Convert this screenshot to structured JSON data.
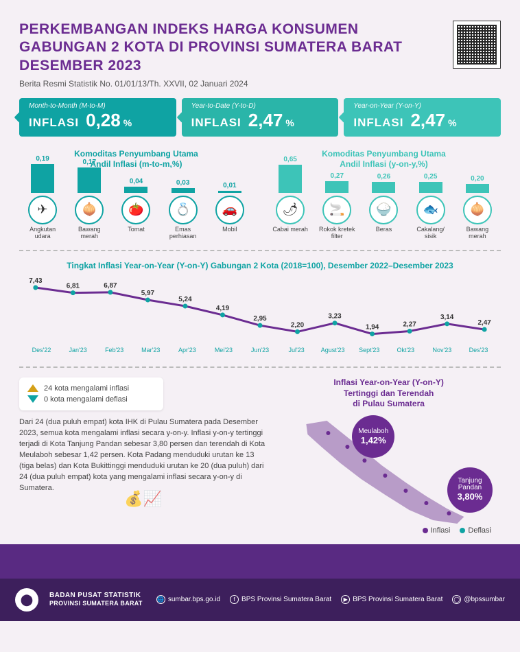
{
  "header": {
    "title_l1": "PERKEMBANGAN INDEKS HARGA KONSUMEN",
    "title_l2": "GABUNGAN 2 KOTA DI PROVINSI SUMATERA BARAT",
    "title_l3": "DESEMBER 2023",
    "subtitle": "Berita Resmi Statistik No. 01/01/13/Th. XXVII, 02 Januari 2024"
  },
  "stats": [
    {
      "eyebrow": "Month-to-Month (M-to-M)",
      "label": "INFLASI",
      "value": "0,28",
      "unit": "%",
      "bg": "#0fa3a3"
    },
    {
      "eyebrow": "Year-to-Date (Y-to-D)",
      "label": "INFLASI",
      "value": "2,47",
      "unit": "%",
      "bg": "#2ab5a9"
    },
    {
      "eyebrow": "Year-on-Year (Y-on-Y)",
      "label": "INFLASI",
      "value": "2,47",
      "unit": "%",
      "bg": "#3dc4b8"
    }
  ],
  "commodity": {
    "left_title_l1": "Komoditas Penyumbang Utama",
    "left_title_l2": "Andil Inflasi (m-to-m,%)",
    "right_title_l1": "Komoditas Penyumbang Utama",
    "right_title_l2": "Andil Inflasi (y-on-y,%)",
    "left_max": 0.2,
    "right_max": 0.7,
    "left_color": "#0fa3a3",
    "right_color": "#3dc4b8",
    "left": [
      {
        "value": "0,19",
        "num": 0.19,
        "label": "Angkutan udara",
        "icon": "✈"
      },
      {
        "value": "0,17",
        "num": 0.17,
        "label": "Bawang merah",
        "icon": "🧅"
      },
      {
        "value": "0,04",
        "num": 0.04,
        "label": "Tomat",
        "icon": "🍅"
      },
      {
        "value": "0,03",
        "num": 0.03,
        "label": "Emas perhiasan",
        "icon": "💍"
      },
      {
        "value": "0,01",
        "num": 0.01,
        "label": "Mobil",
        "icon": "🚗"
      }
    ],
    "right": [
      {
        "value": "0,65",
        "num": 0.65,
        "label": "Cabai merah",
        "icon": "🌶"
      },
      {
        "value": "0,27",
        "num": 0.27,
        "label": "Rokok kretek filter",
        "icon": "🚬"
      },
      {
        "value": "0,26",
        "num": 0.26,
        "label": "Beras",
        "icon": "🍚"
      },
      {
        "value": "0,25",
        "num": 0.25,
        "label": "Cakalang/ sisik",
        "icon": "🐟"
      },
      {
        "value": "0,20",
        "num": 0.2,
        "label": "Bawang merah",
        "icon": "🧅"
      }
    ]
  },
  "linechart": {
    "title": "Tingkat Inflasi Year-on-Year (Y-on-Y) Gabungan 2 Kota (2018=100), Desember 2022–Desember 2023",
    "labels": [
      "Des'22",
      "Jan'23",
      "Feb'23",
      "Mar'23",
      "Apr'23",
      "Mei'23",
      "Jun'23",
      "Jul'23",
      "Agust'23",
      "Sept'23",
      "Okt'23",
      "Nov'23",
      "Des'23"
    ],
    "values": [
      7.43,
      6.81,
      6.87,
      5.97,
      5.24,
      4.19,
      2.95,
      2.2,
      3.23,
      1.94,
      2.27,
      3.14,
      2.47
    ],
    "value_labels": [
      "7,43",
      "6,81",
      "6,87",
      "5,97",
      "5,24",
      "4,19",
      "2,95",
      "2,20",
      "3,23",
      "1,94",
      "2,27",
      "3,14",
      "2,47"
    ],
    "ymin": 1.5,
    "ymax": 8.0,
    "line_color": "#6b2c91",
    "dot_color": "#0fa3a3"
  },
  "legend": {
    "inf_count": "24 kota mengalami inflasi",
    "def_count": "0 kota mengalami deflasi"
  },
  "paragraph": "Dari 24 (dua puluh empat) kota IHK di Pulau Sumatera pada Desember 2023, semua kota mengalami inflasi secara y-on-y. Inflasi y-on-y tertinggi terjadi di Kota Tanjung Pandan sebesar 3,80 persen dan terendah di Kota Meulaboh sebesar 1,42 persen. Kota Padang menduduki urutan ke 13 (tiga belas) dan Kota Bukittinggi menduduki urutan ke 20 (dua puluh) dari 24 (dua puluh empat) kota yang mengalami inflasi secara y-on-y di Sumatera.",
  "map": {
    "title_l1": "Inflasi Year-on-Year (Y-on-Y)",
    "title_l2": "Tertinggi dan Terendah",
    "title_l3": "di Pulau Sumatera",
    "callout_a_name": "Meulaboh",
    "callout_a_val": "1,42%",
    "callout_b_name": "Tanjung Pandan",
    "callout_b_val": "3,80%",
    "legend_inf": "Inflasi",
    "legend_def": "Deflasi"
  },
  "footer": {
    "org_l1": "BADAN PUSAT STATISTIK",
    "org_l2": "PROVINSI SUMATERA BARAT",
    "web": "sumbar.bps.go.id",
    "fb": "BPS Provinsi Sumatera Barat",
    "yt": "BPS Provinsi Sumatera Barat",
    "ig": "@bpssumbar"
  }
}
